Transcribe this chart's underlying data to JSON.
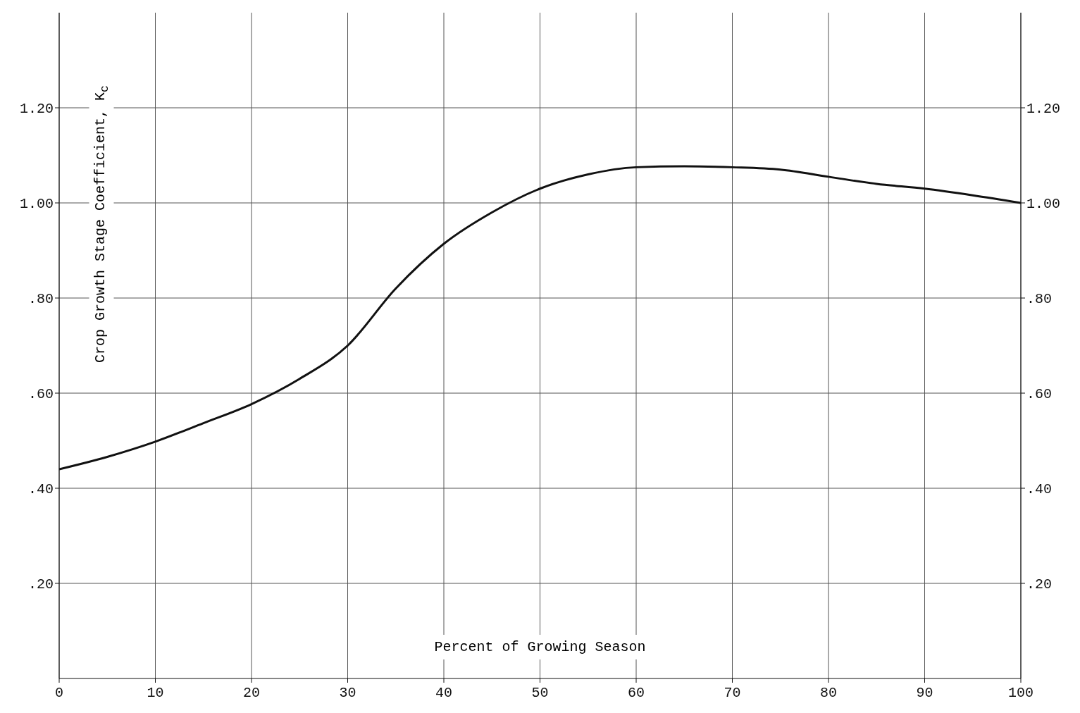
{
  "chart_data": {
    "type": "line",
    "xlabel": "Percent of Growing Season",
    "ylabel": "Crop Growth Stage Coefficient, K$_{c}$",
    "x": [
      0,
      5,
      10,
      15,
      20,
      25,
      30,
      35,
      40,
      45,
      50,
      55,
      60,
      65,
      70,
      75,
      80,
      85,
      90,
      95,
      100
    ],
    "series": [
      {
        "color": "#111111",
        "values": [
          0.44,
          0.466,
          0.498,
          0.537,
          0.577,
          0.63,
          0.7,
          0.82,
          0.914,
          0.98,
          1.03,
          1.06,
          1.075,
          1.077,
          1.075,
          1.07,
          1.055,
          1.04,
          1.03,
          1.016,
          1.0
        ]
      }
    ],
    "xlim": [
      0,
      100
    ],
    "xticks": [
      0,
      10,
      20,
      30,
      40,
      50,
      60,
      70,
      80,
      90,
      100
    ],
    "ylim": [
      0,
      1.4
    ],
    "yticks": [
      {
        "value": 0.2,
        "label": ".20"
      },
      {
        "value": 0.4,
        "label": ".40"
      },
      {
        "value": 0.6,
        "label": ".60"
      },
      {
        "value": 0.8,
        "label": ".80"
      },
      {
        "value": 1.0,
        "label": "1.00"
      },
      {
        "value": 1.2,
        "label": "1.20"
      }
    ],
    "y2lim": [
      0,
      1.4
    ],
    "y2ticks": [
      {
        "value": 0.2,
        "label": ".20"
      },
      {
        "value": 0.4,
        "label": ".40"
      },
      {
        "value": 0.6,
        "label": ".60"
      },
      {
        "value": 0.8,
        "label": ".80"
      },
      {
        "value": 1.0,
        "label": "1.00"
      },
      {
        "value": 1.2,
        "label": "1.20"
      }
    ],
    "grid": true,
    "marker": "none",
    "line_style": "solid"
  }
}
